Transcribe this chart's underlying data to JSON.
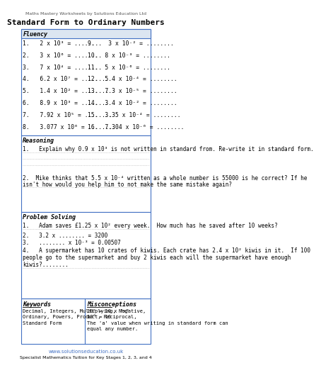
{
  "title_top": "Maths Mastery Worksheets by Solutions Education Ltd",
  "title_main": "Standard Form to Ordinary Numbers",
  "fluency_header": "Fluency",
  "fluency_left": [
    "1.   2 x 10³ = ........",
    "2.   3 x 10⁶ = ........",
    "3.   7 x 10⁴ = ........",
    "4.   6.2 x 10⁷ = ........",
    "5.   1.4 x 10² = ........",
    "6.   8.9 x 10³ = ........",
    "7.   7.92 x 10⁵ = ........",
    "8.   3.077 x 10⁶ = ........"
  ],
  "fluency_right": [
    "9.    3 x 10⁻² = ........",
    "10.  8 x 10⁻³ = ........",
    "11.  5 x 10⁻⁶ = ........",
    "12.  5.4 x 10⁻⁴ = ........",
    "13.  7.3 x 10⁻⁵ = ........",
    "14.  3.4 x 10⁻² = ........",
    "15.  3.35 x 10⁻⁴ = ........",
    "16.  7.304 x 10⁻⁶ = ........"
  ],
  "reasoning_header": "Reasoning",
  "reasoning_q1": "1.   Explain why 0.9 x 10³ is not written in standard from. Re-write it in standard form.",
  "reasoning_q2a": "2.  Mike thinks that 5.5 x 10⁻⁴ written as a whole number is 55000 is he correct? If he",
  "reasoning_q2b": "isn't how would you help him to not make the same mistake again?",
  "problem_header": "Problem Solving",
  "problem_q1": "1.   Adam saves £1.25 x 10² every week.  How much has he saved after 10 weeks?",
  "problem_q2": "2.   3.2 x ........ = 3200",
  "problem_q3": "3.   ........ x 10⁻³ = 0.00507",
  "problem_q4a": "4.   A supermarket has 10 crates of kiwis. Each crate has 2.4 x 10² kiwis in it.  If 100",
  "problem_q4b": "people go to the supermarket and buy 2 kiwis each will the supermarket have enough",
  "problem_q4c": "kiwis?........",
  "keywords_header": "Keywords",
  "keywords_text": "Decimal, Integers, Multiplying, Negative,\nOrdinary, Powers, Product, Reciprocal,\nStandard Form",
  "misconceptions_header": "Misconceptions",
  "misconceptions_text": "10ˣ = 10 x \"x\"\n10° = 10\nThe 'a' value when writing in standard form can\nequal any number.",
  "footer1": "www.solutionseducation.co.uk",
  "footer2": "Specialist Mathematics Tuition for Key Stages 1, 2, 3, and 4",
  "border_color": "#4472c4",
  "bg_color": "#ffffff",
  "header_bg": "#dce6f1",
  "dotted_line_color": "#aaaaaa",
  "text_color": "#000000",
  "title_color": "#555555",
  "footer_link_color": "#4472c4"
}
